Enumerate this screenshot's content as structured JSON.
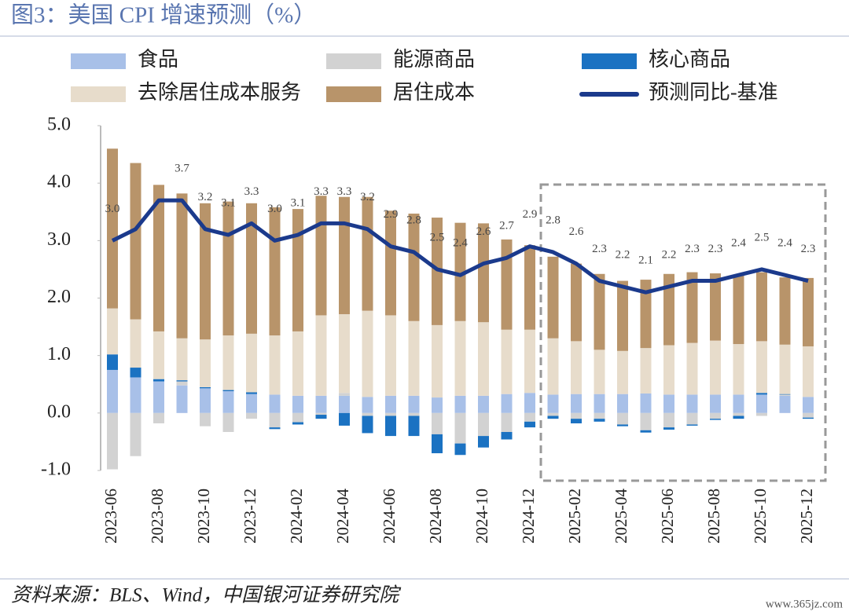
{
  "chart_data": {
    "type": "bar",
    "stacked": true,
    "title": "图3：美国 CPI 增速预测（%）",
    "source": "资料来源：BLS、Wind，中国银河证券研究院",
    "watermark": "www.365jz.com",
    "categories": [
      "2023-06",
      null,
      "2023-08",
      null,
      "2023-10",
      null,
      "2023-12",
      null,
      "2024-02",
      null,
      "2024-04",
      null,
      "2024-06",
      null,
      "2024-08",
      null,
      "2024-10",
      null,
      "2024-12",
      null,
      "2025-02",
      null,
      "2025-04",
      null,
      "2025-06",
      null,
      "2025-08",
      null,
      "2025-10",
      null,
      "2025-12"
    ],
    "ylim": [
      -1,
      5
    ],
    "yticks": [
      {
        "value": -1,
        "label": "-1.0"
      },
      {
        "value": 0,
        "label": "0.0"
      },
      {
        "value": 1,
        "label": "1.0"
      },
      {
        "value": 2,
        "label": "2.0"
      },
      {
        "value": 3,
        "label": "3.0"
      },
      {
        "value": 4,
        "label": "4.0"
      },
      {
        "value": 5,
        "label": "5.0"
      }
    ],
    "series": [
      {
        "name": "食品",
        "color": "#a8c0e8",
        "values": [
          0.75,
          0.62,
          0.55,
          0.48,
          0.43,
          0.38,
          0.33,
          0.32,
          0.3,
          0.3,
          0.3,
          0.28,
          0.3,
          0.3,
          0.27,
          0.3,
          0.3,
          0.33,
          0.35,
          0.32,
          0.33,
          0.33,
          0.33,
          0.34,
          0.32,
          0.32,
          0.32,
          0.32,
          0.32,
          0.3,
          0.28
        ]
      },
      {
        "name": "能源商品",
        "color": "#d2d2d2",
        "values": [
          -0.98,
          -0.75,
          -0.18,
          0.07,
          -0.23,
          -0.33,
          -0.1,
          -0.25,
          -0.16,
          -0.03,
          0.05,
          -0.05,
          -0.05,
          -0.05,
          -0.37,
          -0.53,
          -0.4,
          -0.33,
          -0.15,
          -0.05,
          -0.1,
          -0.1,
          -0.2,
          -0.3,
          -0.25,
          -0.2,
          -0.1,
          -0.05,
          -0.05,
          0.02,
          -0.08
        ]
      },
      {
        "name": "核心商品",
        "color": "#1b72c2",
        "values": [
          0.27,
          0.17,
          0.04,
          0.02,
          0.02,
          0.02,
          0.03,
          -0.03,
          -0.04,
          -0.07,
          -0.22,
          -0.3,
          -0.35,
          -0.35,
          -0.33,
          -0.2,
          -0.2,
          -0.13,
          -0.1,
          -0.05,
          -0.08,
          -0.05,
          -0.03,
          -0.04,
          -0.04,
          -0.02,
          -0.02,
          -0.05,
          0.03,
          0.01,
          -0.02
        ]
      },
      {
        "name": "去除居住成本服务",
        "color": "#e7dccb",
        "values": [
          0.8,
          0.84,
          0.83,
          0.73,
          0.83,
          0.95,
          1.02,
          1.03,
          1.12,
          1.4,
          1.37,
          1.5,
          1.4,
          1.3,
          1.26,
          1.3,
          1.28,
          1.12,
          1.1,
          0.98,
          0.92,
          0.77,
          0.75,
          0.79,
          0.86,
          0.9,
          0.94,
          0.88,
          0.9,
          0.86,
          0.88
        ]
      },
      {
        "name": "居住成本",
        "color": "#b8946a",
        "values": [
          2.78,
          2.72,
          2.55,
          2.52,
          2.37,
          2.33,
          2.27,
          2.23,
          2.13,
          2.08,
          2.04,
          1.98,
          1.82,
          1.87,
          1.87,
          1.71,
          1.72,
          1.57,
          1.47,
          1.42,
          1.35,
          1.32,
          1.22,
          1.19,
          1.24,
          1.23,
          1.17,
          1.2,
          1.2,
          1.17,
          1.19
        ]
      },
      {
        "name": "预测同比-基准",
        "type": "line",
        "color": "#1b3a8c",
        "values": [
          3.0,
          3.2,
          3.7,
          3.7,
          3.2,
          3.1,
          3.3,
          3.0,
          3.1,
          3.3,
          3.3,
          3.2,
          2.9,
          2.8,
          2.5,
          2.4,
          2.6,
          2.7,
          2.9,
          2.8,
          2.6,
          2.3,
          2.2,
          2.1,
          2.2,
          2.3,
          2.3,
          2.4,
          2.5,
          2.4,
          2.3
        ],
        "value_labels": [
          "3.0",
          null,
          null,
          "3.7",
          "3.2",
          "3.1",
          "3.3",
          "3.0",
          "3.1",
          "3.3",
          "3.3",
          "3.2",
          "2.9",
          "2.8",
          "2.5",
          "2.4",
          "2.6",
          "2.7",
          "2.9",
          "2.8",
          "2.6",
          "2.3",
          "2.2",
          "2.1",
          "2.2",
          "2.3",
          "2.3",
          "2.4",
          "2.5",
          "2.4",
          "2.3"
        ]
      }
    ]
  }
}
